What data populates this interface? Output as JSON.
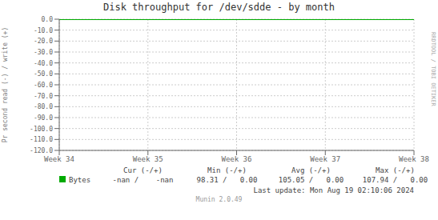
{
  "chart_data": {
    "type": "line",
    "title": "Disk throughput for /dev/sdde - by month",
    "y_label": "Pr second read (-) / write (+)",
    "categories": [
      "Week 34",
      "Week 35",
      "Week 36",
      "Week 37",
      "Week 38"
    ],
    "series": [
      {
        "name": "Bytes",
        "color": "#00aa00",
        "values": [
          0,
          0,
          0,
          0,
          0
        ]
      }
    ],
    "ylim": [
      -120,
      0
    ],
    "yticks": [
      {
        "value": 0,
        "label": "0.0"
      },
      {
        "value": -10,
        "label": "-10.0"
      },
      {
        "value": -20,
        "label": "-20.0"
      },
      {
        "value": -30,
        "label": "-30.0"
      },
      {
        "value": -40,
        "label": "-40.0"
      },
      {
        "value": -50,
        "label": "-50.0"
      },
      {
        "value": -60,
        "label": "-60.0"
      },
      {
        "value": -70,
        "label": "-70.0"
      },
      {
        "value": -80,
        "label": "-80.0"
      },
      {
        "value": -90,
        "label": "-90.0"
      },
      {
        "value": -100,
        "label": "-100.0"
      },
      {
        "value": -110,
        "label": "-110.0"
      },
      {
        "value": -120,
        "label": "-120.0"
      }
    ],
    "grid": true,
    "legend": "bottom",
    "annotations": [
      "Cur (-/+)",
      "-nan /    -nan",
      "Min (-/+)",
      "98.31 /   0.00",
      "Avg (-/+)",
      "105.05 /   0.00",
      "Max (-/+)",
      "107.94 /   0.00",
      "Last update: Mon Aug 19 02:10:06 2024",
      "Munin 2.0.49",
      "RRDTOOL / TOBI OETIKER"
    ]
  }
}
